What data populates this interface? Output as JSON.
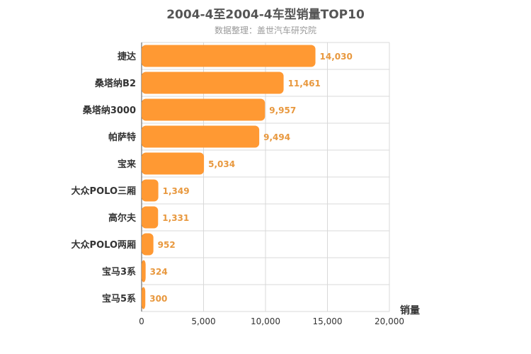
{
  "chart_data": {
    "type": "bar",
    "orientation": "horizontal",
    "title": "2004-4至2004-4车型销量TOP10",
    "subtitle": "数据整理：盖世汽车研究院",
    "categories": [
      "捷达",
      "桑塔纳B2",
      "桑塔纳3000",
      "帕萨特",
      "宝来",
      "大众POLO三厢",
      "高尔夫",
      "大众POLO两厢",
      "宝马3系",
      "宝马5系"
    ],
    "values": [
      14030,
      11461,
      9957,
      9494,
      5034,
      1349,
      1331,
      952,
      324,
      300
    ],
    "value_labels": [
      "14,030",
      "11,461",
      "9,957",
      "9,494",
      "5,034",
      "1,349",
      "1,331",
      "952",
      "324",
      "300"
    ],
    "xlabel": "销量",
    "xlim": [
      0,
      20000
    ],
    "xticks": [
      0,
      5000,
      10000,
      15000,
      20000
    ],
    "xtick_labels": [
      "0",
      "5,000",
      "10,000",
      "15,000",
      "20,000"
    ],
    "grid": true,
    "bar_color": "#ff9933",
    "label_color": "#e8983e"
  }
}
